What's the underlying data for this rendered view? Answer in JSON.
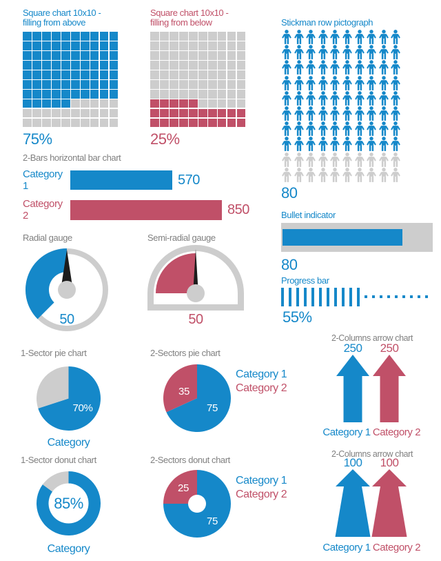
{
  "colors": {
    "blue": "#1588c9",
    "red": "#c05068",
    "gray": "#cdcdcd",
    "title_gray": "#808080",
    "needle": "#1c1c1c",
    "white": "#ffffff"
  },
  "chart_data": [
    {
      "type": "square-grid",
      "title_lines": [
        "Square chart 10x10 -",
        "filling from above"
      ],
      "rows": 10,
      "cols": 10,
      "filled_cells": 75,
      "fill_from": "top",
      "value_label": "75%",
      "percent": 75,
      "color_key": "blue"
    },
    {
      "type": "square-grid",
      "title_lines": [
        "Square chart 10x10 -",
        "filling from below"
      ],
      "rows": 10,
      "cols": 10,
      "filled_cells": 25,
      "fill_from": "bottom",
      "value_label": "25%",
      "percent": 25,
      "color_key": "red"
    },
    {
      "type": "pictograph",
      "title": "Stickman row pictograph",
      "total_icons": 100,
      "filled_icons": 80,
      "value_label": "80",
      "color_key": "blue"
    },
    {
      "type": "bar",
      "title": "2-Bars horizontal bar chart",
      "categories": [
        "Category 1",
        "Category 2"
      ],
      "values": [
        570,
        850
      ],
      "value_labels": [
        "570",
        "850"
      ],
      "xmax": 850,
      "color_keys": [
        "blue",
        "red"
      ]
    },
    {
      "type": "radial-gauge",
      "title": "Radial gauge",
      "value": 50,
      "range": [
        0,
        100
      ],
      "value_label": "50",
      "color_key": "blue"
    },
    {
      "type": "semi-radial-gauge",
      "title": "Semi-radial gauge",
      "value": 50,
      "range": [
        0,
        100
      ],
      "value_label": "50",
      "color_key": "red"
    },
    {
      "type": "bullet",
      "title": "Bullet indicator",
      "value": 80,
      "max": 100,
      "value_label": "80",
      "color_key": "blue"
    },
    {
      "type": "progress",
      "title": "Progress bar",
      "percent": 55,
      "segments_total": 20,
      "segments_filled": 11,
      "value_label": "55%",
      "color_key": "blue"
    },
    {
      "type": "pie",
      "title": "1-Sector pie chart",
      "slices": [
        {
          "value": 70,
          "label": "70%",
          "color_key": "blue"
        },
        {
          "value": 30,
          "color_key": "gray"
        }
      ],
      "caption": "Category"
    },
    {
      "type": "pie",
      "title": "2-Sectors pie chart",
      "slices": [
        {
          "value": 75,
          "label": "75",
          "color_key": "blue"
        },
        {
          "value": 35,
          "label": "35",
          "color_key": "red"
        }
      ],
      "legend": [
        {
          "label": "Category 1",
          "color_key": "blue"
        },
        {
          "label": "Category 2",
          "color_key": "red"
        }
      ]
    },
    {
      "type": "arrow-columns",
      "title": "2-Columns arrow chart",
      "style": "straight",
      "columns": [
        {
          "category": "Category 1",
          "value_label": "250",
          "value": 250,
          "color_key": "blue"
        },
        {
          "category": "Category 2",
          "value_label": "250",
          "value": 250,
          "color_key": "red"
        }
      ]
    },
    {
      "type": "donut",
      "title": "1-Sector donut chart",
      "slices": [
        {
          "value": 85,
          "color_key": "blue"
        },
        {
          "value": 15,
          "color_key": "gray"
        }
      ],
      "center_label": "85%",
      "caption": "Category"
    },
    {
      "type": "donut",
      "title": "2-Sectors donut chart",
      "slices": [
        {
          "value": 75,
          "label": "75",
          "color_key": "blue"
        },
        {
          "value": 25,
          "label": "25",
          "color_key": "red"
        }
      ],
      "legend": [
        {
          "label": "Category 1",
          "color_key": "blue"
        },
        {
          "label": "Category 2",
          "color_key": "red"
        }
      ]
    },
    {
      "type": "arrow-columns",
      "title": "2-Columns arrow chart",
      "style": "tapered",
      "columns": [
        {
          "category": "Category 1",
          "value_label": "100",
          "value": 100,
          "color_key": "blue"
        },
        {
          "category": "Category 2",
          "value_label": "100",
          "value": 100,
          "color_key": "red"
        }
      ]
    }
  ]
}
